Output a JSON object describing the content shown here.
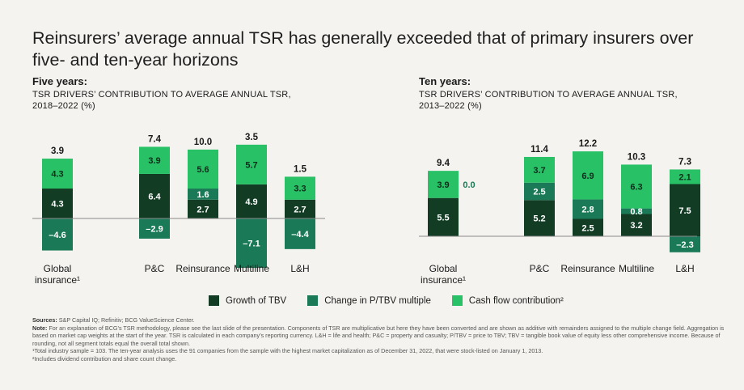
{
  "title": "Reinsurers’ average annual TSR has generally exceeded that of primary insurers over five- and ten-year horizons",
  "colors": {
    "growth_tbv": "#123c24",
    "change_ptbv": "#1a7a58",
    "cash_flow": "#28c166",
    "axis": "#8a8a8a"
  },
  "legend": [
    {
      "key": "growth_tbv",
      "label": "Growth of TBV"
    },
    {
      "key": "change_ptbv",
      "label": "Change in P/TBV multiple"
    },
    {
      "key": "cash_flow",
      "label": "Cash flow contribution²"
    }
  ],
  "chart_data": [
    {
      "type": "bar",
      "title": "Five years:",
      "subtitle": "TSR DRIVERS’ CONTRIBUTION TO AVERAGE ANNUAL TSR,",
      "period": "2018–2022 (%)",
      "categories": [
        "Global insurance¹",
        "P&C",
        "Reinsurance",
        "Multiline",
        "L&H"
      ],
      "category_lines": [
        [
          "Global",
          "insurance¹"
        ],
        [
          "P&C"
        ],
        [
          "Reinsurance"
        ],
        [
          "Multiline"
        ],
        [
          "L&H"
        ]
      ],
      "totals": [
        3.9,
        7.4,
        10.0,
        3.5,
        1.5
      ],
      "total_labels": [
        "3.9",
        "7.4",
        "10.0",
        "3.5",
        "1.5"
      ],
      "series": [
        {
          "name": "Growth of TBV",
          "key": "growth_tbv",
          "values": [
            4.3,
            6.4,
            2.7,
            4.9,
            2.7
          ],
          "labels": [
            "4.3",
            "6.4",
            "2.7",
            "4.9",
            "2.7"
          ]
        },
        {
          "name": "Change in P/TBV multiple",
          "key": "change_ptbv",
          "values": [
            -4.6,
            -2.9,
            1.6,
            -7.1,
            -4.4
          ],
          "labels": [
            "–4.6",
            "–2.9",
            "1.6",
            "–7.1",
            "–4.4"
          ]
        },
        {
          "name": "Cash flow contribution²",
          "key": "cash_flow",
          "values": [
            4.3,
            3.9,
            5.6,
            5.7,
            3.3
          ],
          "labels": [
            "4.3",
            "3.9",
            "5.6",
            "5.7",
            "3.3"
          ]
        }
      ]
    },
    {
      "type": "bar",
      "title": "Ten years:",
      "subtitle": "TSR DRIVERS’ CONTRIBUTION TO AVERAGE ANNUAL TSR,",
      "period": "2013–2022 (%)",
      "categories": [
        "Global insurance¹",
        "P&C",
        "Reinsurance",
        "Multiline",
        "L&H"
      ],
      "category_lines": [
        [
          "Global",
          "insurance¹"
        ],
        [
          "P&C"
        ],
        [
          "Reinsurance"
        ],
        [
          "Multiline"
        ],
        [
          "L&H"
        ]
      ],
      "totals": [
        9.4,
        11.4,
        12.2,
        10.3,
        7.3
      ],
      "total_labels": [
        "9.4",
        "11.4",
        "12.2",
        "10.3",
        "7.3"
      ],
      "series": [
        {
          "name": "Growth of TBV",
          "key": "growth_tbv",
          "values": [
            5.5,
            5.2,
            2.5,
            3.2,
            7.5
          ],
          "labels": [
            "5.5",
            "5.2",
            "2.5",
            "3.2",
            "7.5"
          ]
        },
        {
          "name": "Change in P/TBV multiple",
          "key": "change_ptbv",
          "values": [
            0.0,
            2.5,
            2.8,
            0.8,
            -2.3
          ],
          "labels": [
            "0.0",
            "2.5",
            "2.8",
            "0.8",
            "–2.3"
          ]
        },
        {
          "name": "Cash flow contribution²",
          "key": "cash_flow",
          "values": [
            3.9,
            3.7,
            6.9,
            6.3,
            2.1
          ],
          "labels": [
            "3.9",
            "3.7",
            "6.9",
            "6.3",
            "2.1"
          ]
        }
      ]
    }
  ],
  "notes": {
    "sources_label": "Sources:",
    "sources": "S&P Capital IQ; Refinitiv; BCG ValueScience Center.",
    "note_label": "Note:",
    "note": "For an explanation of BCG’s TSR methodology, please see the last slide of the presentation. Components of TSR are multiplicative but here they have been converted and are shown as additive with remainders assigned to the multiple change field. Aggregation is based on market cap weights at the start of the year. TSR is calculated in each company’s reporting currency. L&H = life and health; P&C = property and casualty; P/TBV = price to TBV; TBV = tangible book value of equity less other comprehensive income. Because of rounding, not all segment totals equal the overall total shown.",
    "footnote1": "¹Total industry sample = 103. The ten-year analysis uses the 91 companies from the sample with the highest market capitalization as of December 31, 2022, that were stock-listed on January 1, 2013.",
    "footnote2": "²Includes dividend contribution and share count change."
  }
}
